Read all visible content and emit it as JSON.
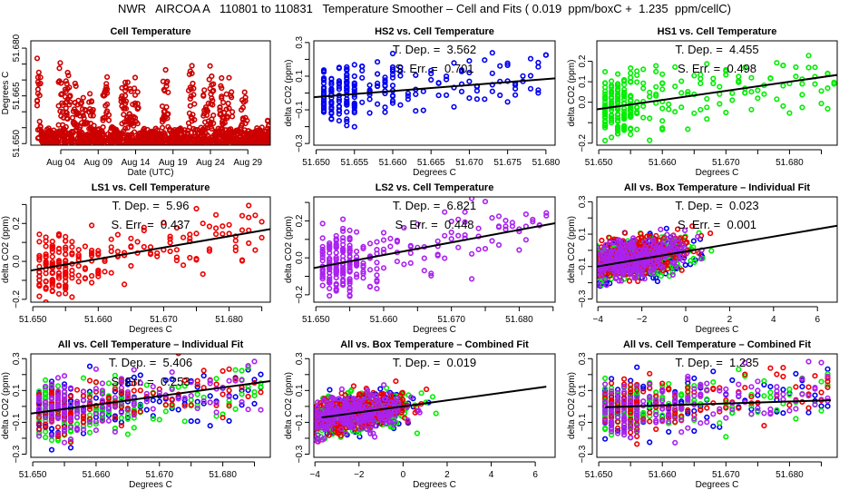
{
  "title": "NWR   AIRCOA A   110801 to 110831   Temperature Smoother – Cell and Fits ( 0.019  ppm/boxC +  1.235  ppm/cellC)",
  "chart_data": [
    {
      "id": "cell-temperature",
      "type": "scatter",
      "title": "Cell Temperature",
      "xlabel": "Date (UTC)",
      "ylabel": "Degrees C",
      "x_kind": "date",
      "xlim": [
        0,
        32
      ],
      "ylim": [
        51.6495,
        51.6823
      ],
      "x_ticks": [
        {
          "v": 4,
          "label": "Aug 04"
        },
        {
          "v": 9,
          "label": "Aug 09"
        },
        {
          "v": 14,
          "label": "Aug 14"
        },
        {
          "v": 19,
          "label": "Aug 19"
        },
        {
          "v": 24,
          "label": "Aug 24"
        },
        {
          "v": 29,
          "label": "Aug 29"
        }
      ],
      "y_ticks": [
        {
          "v": 51.65,
          "label": "51.650"
        },
        {
          "v": 51.655,
          "label": ""
        },
        {
          "v": 51.66,
          "label": ""
        },
        {
          "v": 51.665,
          "label": "51.665"
        },
        {
          "v": 51.67,
          "label": ""
        },
        {
          "v": 51.675,
          "label": ""
        },
        {
          "v": 51.68,
          "label": "51.680"
        }
      ],
      "series": [
        {
          "name": "Cell temperature",
          "color": "#cc0000",
          "x_range": [
            0.8,
            32
          ],
          "y_base": 51.65,
          "description": "spiky time series, baseline ~51.650-51.655 with daily peaks up to ~51.681"
        }
      ],
      "peaks": [
        [
          1.0,
          51.68
        ],
        [
          4.0,
          51.678
        ],
        [
          5.0,
          51.676
        ],
        [
          6.0,
          51.671
        ],
        [
          7.0,
          51.669
        ],
        [
          8.0,
          51.669
        ],
        [
          10.0,
          51.675
        ],
        [
          12.5,
          51.675
        ],
        [
          13.0,
          51.677
        ],
        [
          14.0,
          51.677
        ],
        [
          18.0,
          51.678
        ],
        [
          21.5,
          51.679
        ],
        [
          23.5,
          51.674
        ],
        [
          24.0,
          51.681
        ],
        [
          25.5,
          51.671
        ],
        [
          26.5,
          51.673
        ],
        [
          28.5,
          51.669
        ],
        [
          31.5,
          51.661
        ]
      ]
    },
    {
      "id": "hs2-vs-cell",
      "type": "scatter",
      "title": "HS2 vs. Cell Temperature",
      "xlabel": "Degrees C",
      "ylabel": "delta CO2 (ppm)",
      "xlim": [
        51.6497,
        51.6812
      ],
      "ylim": [
        -0.31,
        0.31
      ],
      "x_ticks": [
        {
          "v": 51.65,
          "label": "51.650"
        },
        {
          "v": 51.655,
          "label": "51.655"
        },
        {
          "v": 51.66,
          "label": "51.660"
        },
        {
          "v": 51.665,
          "label": "51.665"
        },
        {
          "v": 51.67,
          "label": "51.670"
        },
        {
          "v": 51.675,
          "label": "51.675"
        },
        {
          "v": 51.68,
          "label": "51.680"
        }
      ],
      "y_ticks": [
        {
          "v": -0.3,
          "label": "−0.3"
        },
        {
          "v": -0.2,
          "label": ""
        },
        {
          "v": -0.1,
          "label": "−0.1"
        },
        {
          "v": 0.0,
          "label": ""
        },
        {
          "v": 0.1,
          "label": "0.1"
        },
        {
          "v": 0.2,
          "label": ""
        },
        {
          "v": 0.3,
          "label": "0.3"
        }
      ],
      "series": [
        {
          "name": "HS2",
          "color": "#0000ee",
          "x_range": [
            51.651,
            51.68
          ],
          "spread": 0.09
        }
      ],
      "fit": {
        "slope": 3.562,
        "x0": 51.6497,
        "y0": -0.025,
        "color": "#000000"
      },
      "annotations": [
        "T. Dep. =  3.562",
        "S. Err. =  0.701"
      ]
    },
    {
      "id": "hs1-vs-cell",
      "type": "scatter",
      "title": "HS1 vs. Cell Temperature",
      "xlabel": "Degrees C",
      "ylabel": "delta CO2 (ppm)",
      "xlim": [
        51.6497,
        51.6875
      ],
      "ylim": [
        -0.21,
        0.3
      ],
      "x_ticks": [
        {
          "v": 51.65,
          "label": "51.650"
        },
        {
          "v": 51.655,
          "label": ""
        },
        {
          "v": 51.66,
          "label": "51.660"
        },
        {
          "v": 51.665,
          "label": ""
        },
        {
          "v": 51.67,
          "label": "51.670"
        },
        {
          "v": 51.675,
          "label": ""
        },
        {
          "v": 51.68,
          "label": "51.680"
        },
        {
          "v": 51.685,
          "label": ""
        }
      ],
      "y_ticks": [
        {
          "v": -0.2,
          "label": "−0.2"
        },
        {
          "v": -0.1,
          "label": ""
        },
        {
          "v": 0.0,
          "label": "0.0"
        },
        {
          "v": 0.1,
          "label": "0.1"
        },
        {
          "v": 0.2,
          "label": "0.2"
        }
      ],
      "series": [
        {
          "name": "HS1",
          "color": "#00ee00",
          "x_range": [
            51.651,
            51.687
          ],
          "spread": 0.08
        }
      ],
      "fit": {
        "slope": 4.455,
        "x0": 51.6497,
        "y0": -0.035,
        "color": "#000000"
      },
      "annotations": [
        "T. Dep. =  4.455",
        "S. Err. =  0.498"
      ]
    },
    {
      "id": "ls1-vs-cell",
      "type": "scatter",
      "title": "LS1 vs. Cell Temperature",
      "xlabel": "Degrees C",
      "ylabel": "delta CO2 (ppm)",
      "xlim": [
        51.6497,
        51.6863
      ],
      "ylim": [
        -0.215,
        0.34
      ],
      "x_ticks": [
        {
          "v": 51.65,
          "label": "51.650"
        },
        {
          "v": 51.655,
          "label": ""
        },
        {
          "v": 51.66,
          "label": "51.660"
        },
        {
          "v": 51.665,
          "label": ""
        },
        {
          "v": 51.67,
          "label": "51.670"
        },
        {
          "v": 51.675,
          "label": ""
        },
        {
          "v": 51.68,
          "label": "51.680"
        },
        {
          "v": 51.685,
          "label": ""
        }
      ],
      "y_ticks": [
        {
          "v": -0.2,
          "label": "−0.2"
        },
        {
          "v": -0.1,
          "label": ""
        },
        {
          "v": 0.0,
          "label": "0.0"
        },
        {
          "v": 0.1,
          "label": ""
        },
        {
          "v": 0.2,
          "label": "0.2"
        },
        {
          "v": 0.3,
          "label": ""
        }
      ],
      "series": [
        {
          "name": "LS1",
          "color": "#ee0000",
          "x_range": [
            51.651,
            51.685
          ],
          "spread": 0.08
        }
      ],
      "fit": {
        "slope": 5.96,
        "x0": 51.6497,
        "y0": -0.048,
        "color": "#000000"
      },
      "annotations": [
        "T. Dep. =  5.96",
        "S. Err. =  0.437"
      ]
    },
    {
      "id": "ls2-vs-cell",
      "type": "scatter",
      "title": "LS2 vs. Cell Temperature",
      "xlabel": "Degrees C",
      "ylabel": "delta CO2 (ppm)",
      "xlim": [
        51.6497,
        51.6853
      ],
      "ylim": [
        -0.24,
        0.33
      ],
      "x_ticks": [
        {
          "v": 51.65,
          "label": "51.650"
        },
        {
          "v": 51.655,
          "label": ""
        },
        {
          "v": 51.66,
          "label": "51.660"
        },
        {
          "v": 51.665,
          "label": ""
        },
        {
          "v": 51.67,
          "label": "51.670"
        },
        {
          "v": 51.675,
          "label": ""
        },
        {
          "v": 51.68,
          "label": "51.680"
        },
        {
          "v": 51.685,
          "label": ""
        }
      ],
      "y_ticks": [
        {
          "v": -0.2,
          "label": "−0.2"
        },
        {
          "v": -0.1,
          "label": ""
        },
        {
          "v": 0.0,
          "label": "0.0"
        },
        {
          "v": 0.1,
          "label": ""
        },
        {
          "v": 0.2,
          "label": "0.2"
        },
        {
          "v": 0.3,
          "label": ""
        }
      ],
      "series": [
        {
          "name": "LS2",
          "color": "#aa22ee",
          "x_range": [
            51.651,
            51.684
          ],
          "spread": 0.09
        }
      ],
      "fit": {
        "slope": 6.821,
        "x0": 51.6497,
        "y0": -0.055,
        "color": "#000000"
      },
      "annotations": [
        "T. Dep. =  6.821",
        "S. Err. =  0.448"
      ]
    },
    {
      "id": "all-vs-box-individual",
      "type": "scatter",
      "title": "All vs. Box Temperature – Individual Fit",
      "xlabel": "Degrees C",
      "ylabel": "delta CO2 (ppm)",
      "xlim": [
        -4.05,
        6.9
      ],
      "ylim": [
        -0.32,
        0.33
      ],
      "x_ticks": [
        {
          "v": -4,
          "label": "−4"
        },
        {
          "v": -2,
          "label": "−2"
        },
        {
          "v": 0,
          "label": "0"
        },
        {
          "v": 2,
          "label": "2"
        },
        {
          "v": 4,
          "label": "4"
        },
        {
          "v": 6,
          "label": "6"
        }
      ],
      "y_ticks": [
        {
          "v": -0.3,
          "label": "−0.3"
        },
        {
          "v": -0.2,
          "label": ""
        },
        {
          "v": -0.1,
          "label": "−0.1"
        },
        {
          "v": 0.0,
          "label": ""
        },
        {
          "v": 0.1,
          "label": "0.1"
        },
        {
          "v": 0.2,
          "label": ""
        },
        {
          "v": 0.3,
          "label": "0.3"
        }
      ],
      "series": [
        {
          "name": "HS2",
          "color": "#0000ee"
        },
        {
          "name": "HS1",
          "color": "#00ee00"
        },
        {
          "name": "LS1",
          "color": "#ee0000"
        },
        {
          "name": "LS2",
          "color": "#aa22ee"
        }
      ],
      "x_range": [
        -3.8,
        6.6
      ],
      "fit": {
        "slope": 0.023,
        "x0": -4.05,
        "y0": -0.1,
        "color": "#000000"
      },
      "annotations": [
        "T. Dep. =  0.023",
        "S. Err. =  0.001"
      ]
    },
    {
      "id": "all-vs-cell-individual",
      "type": "scatter",
      "title": "All vs. Cell Temperature – Individual Fit",
      "xlabel": "Degrees C",
      "ylabel": "delta CO2 (ppm)",
      "xlim": [
        51.6497,
        51.6875
      ],
      "ylim": [
        -0.32,
        0.33
      ],
      "x_ticks": [
        {
          "v": 51.65,
          "label": "51.650"
        },
        {
          "v": 51.655,
          "label": ""
        },
        {
          "v": 51.66,
          "label": "51.660"
        },
        {
          "v": 51.665,
          "label": ""
        },
        {
          "v": 51.67,
          "label": "51.670"
        },
        {
          "v": 51.675,
          "label": ""
        },
        {
          "v": 51.68,
          "label": "51.680"
        },
        {
          "v": 51.685,
          "label": ""
        }
      ],
      "y_ticks": [
        {
          "v": -0.3,
          "label": "−0.3"
        },
        {
          "v": -0.2,
          "label": ""
        },
        {
          "v": -0.1,
          "label": "−0.1"
        },
        {
          "v": 0.0,
          "label": ""
        },
        {
          "v": 0.1,
          "label": "0.1"
        },
        {
          "v": 0.2,
          "label": ""
        },
        {
          "v": 0.3,
          "label": "0.3"
        }
      ],
      "series": [
        {
          "name": "HS2",
          "color": "#0000ee"
        },
        {
          "name": "HS1",
          "color": "#00ee00"
        },
        {
          "name": "LS1",
          "color": "#ee0000"
        },
        {
          "name": "LS2",
          "color": "#aa22ee"
        }
      ],
      "x_range": [
        51.651,
        51.687
      ],
      "fit": {
        "slope": 5.406,
        "x0": 51.6497,
        "y0": -0.045,
        "color": "#000000"
      },
      "annotations": [
        "T. Dep. =  5.406",
        "S. Err. =  0.253"
      ]
    },
    {
      "id": "all-vs-box-combined",
      "type": "scatter",
      "title": "All vs. Box Temperature – Combined Fit",
      "xlabel": "Degrees C",
      "ylabel": "delta CO2 (ppm)",
      "xlim": [
        -4.05,
        6.9
      ],
      "ylim": [
        -0.32,
        0.33
      ],
      "x_ticks": [
        {
          "v": -4,
          "label": "−4"
        },
        {
          "v": -2,
          "label": "−2"
        },
        {
          "v": 0,
          "label": "0"
        },
        {
          "v": 2,
          "label": "2"
        },
        {
          "v": 4,
          "label": "4"
        },
        {
          "v": 6,
          "label": "6"
        }
      ],
      "y_ticks": [
        {
          "v": -0.3,
          "label": "−0.3"
        },
        {
          "v": -0.2,
          "label": ""
        },
        {
          "v": -0.1,
          "label": "−0.1"
        },
        {
          "v": 0.0,
          "label": ""
        },
        {
          "v": 0.1,
          "label": "0.1"
        },
        {
          "v": 0.2,
          "label": ""
        },
        {
          "v": 0.3,
          "label": "0.3"
        }
      ],
      "series": [
        {
          "name": "HS2",
          "color": "#0000ee"
        },
        {
          "name": "HS1",
          "color": "#00ee00"
        },
        {
          "name": "LS1",
          "color": "#ee0000"
        },
        {
          "name": "LS2",
          "color": "#aa22ee"
        }
      ],
      "x_range": [
        -3.8,
        6.6
      ],
      "fit": {
        "slope": 0.019,
        "x0": -3.7,
        "y0": -0.07,
        "x1": 6.5,
        "color": "#000000"
      },
      "annotations": [
        "T. Dep. =  0.019"
      ]
    },
    {
      "id": "all-vs-cell-combined",
      "type": "scatter",
      "title": "All vs. Cell Temperature – Combined Fit",
      "xlabel": "Degrees C",
      "ylabel": "delta CO2 (ppm)",
      "xlim": [
        51.6497,
        51.6875
      ],
      "ylim": [
        -0.32,
        0.33
      ],
      "x_ticks": [
        {
          "v": 51.65,
          "label": "51.650"
        },
        {
          "v": 51.655,
          "label": ""
        },
        {
          "v": 51.66,
          "label": "51.660"
        },
        {
          "v": 51.665,
          "label": ""
        },
        {
          "v": 51.67,
          "label": "51.670"
        },
        {
          "v": 51.675,
          "label": ""
        },
        {
          "v": 51.68,
          "label": "51.680"
        },
        {
          "v": 51.685,
          "label": ""
        }
      ],
      "y_ticks": [
        {
          "v": -0.3,
          "label": "−0.3"
        },
        {
          "v": -0.2,
          "label": ""
        },
        {
          "v": -0.1,
          "label": "−0.1"
        },
        {
          "v": 0.0,
          "label": ""
        },
        {
          "v": 0.1,
          "label": "0.1"
        },
        {
          "v": 0.2,
          "label": ""
        },
        {
          "v": 0.3,
          "label": "0.3"
        }
      ],
      "series": [
        {
          "name": "HS2",
          "color": "#0000ee"
        },
        {
          "name": "HS1",
          "color": "#00ee00"
        },
        {
          "name": "LS1",
          "color": "#ee0000"
        },
        {
          "name": "LS2",
          "color": "#aa22ee"
        }
      ],
      "x_range": [
        51.651,
        51.687
      ],
      "fit": {
        "slope": 1.235,
        "x0": 51.651,
        "y0": -0.005,
        "x1": 51.6865,
        "color": "#000000"
      },
      "annotations": [
        "T. Dep. =  1.235"
      ]
    }
  ]
}
